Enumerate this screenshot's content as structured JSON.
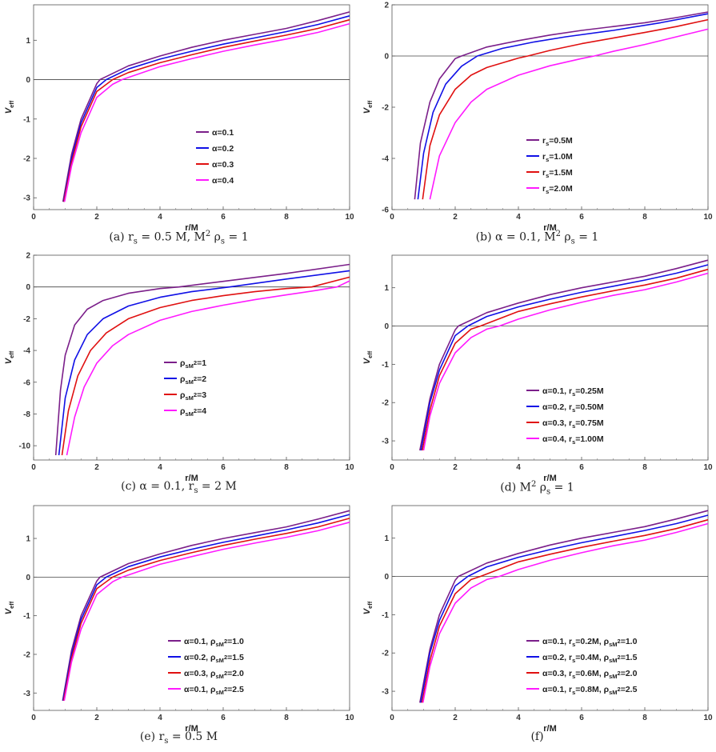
{
  "colors": {
    "purple": "#7b1f8a",
    "blue": "#1010e6",
    "red": "#e01010",
    "magenta": "#ff1aff"
  },
  "chart_data": [
    {
      "type": "line",
      "caption": "(a) r_s = 0.5 M, M^2 ρ_s = 1",
      "xlabel": "r/M",
      "ylabel": "V_eff",
      "xlim": [
        0,
        10
      ],
      "ylim": [
        -3.3,
        1.9
      ],
      "xticks": [
        "0",
        "2",
        "4",
        "6",
        "8",
        "10"
      ],
      "yticks": [
        "-3",
        "-2",
        "-1",
        "0",
        "1"
      ],
      "xtick_values": [
        0,
        2,
        4,
        6,
        8,
        10
      ],
      "ytick_values": [
        -3,
        -2,
        -1,
        0,
        1
      ],
      "legend_position": "center-right",
      "series": [
        {
          "name": "α=0.1",
          "color": "#7b1f8a",
          "x": [
            0.93,
            1.2,
            1.5,
            2.0,
            2.1,
            3,
            4,
            5,
            6,
            7,
            8,
            9,
            10
          ],
          "y": [
            -3.1,
            -1.9,
            -1.0,
            -0.1,
            0.0,
            0.35,
            0.6,
            0.82,
            1.0,
            1.15,
            1.3,
            1.5,
            1.72
          ]
        },
        {
          "name": "α=0.2",
          "color": "#1010e6",
          "x": [
            0.95,
            1.2,
            1.5,
            2.0,
            2.3,
            3,
            4,
            5,
            6,
            7,
            8,
            9,
            10
          ],
          "y": [
            -3.1,
            -2.0,
            -1.1,
            -0.2,
            0.0,
            0.27,
            0.52,
            0.72,
            0.9,
            1.06,
            1.22,
            1.4,
            1.62
          ]
        },
        {
          "name": "α=0.3",
          "color": "#e01010",
          "x": [
            0.96,
            1.2,
            1.5,
            2.0,
            2.5,
            3,
            4,
            5,
            6,
            7,
            8,
            9,
            10
          ],
          "y": [
            -3.1,
            -2.1,
            -1.2,
            -0.3,
            0.0,
            0.18,
            0.43,
            0.63,
            0.82,
            0.98,
            1.13,
            1.3,
            1.52
          ]
        },
        {
          "name": "α=0.4",
          "color": "#ff1aff",
          "x": [
            0.98,
            1.2,
            1.5,
            2.0,
            2.5,
            2.8,
            4,
            5,
            6,
            7,
            8,
            9,
            10
          ],
          "y": [
            -3.1,
            -2.2,
            -1.35,
            -0.45,
            -0.12,
            0.0,
            0.33,
            0.53,
            0.72,
            0.88,
            1.03,
            1.2,
            1.42
          ]
        }
      ]
    },
    {
      "type": "line",
      "caption": "(b) α = 0.1, M^2 ρ_s = 1",
      "xlabel": "r/M",
      "ylabel": "V_eff",
      "xlim": [
        0,
        10
      ],
      "ylim": [
        -6.0,
        2.0
      ],
      "xticks": [
        "0",
        "2",
        "4",
        "6",
        "8",
        "10"
      ],
      "yticks": [
        "-6",
        "-4",
        "-2",
        "0",
        "2"
      ],
      "xtick_values": [
        0,
        2,
        4,
        6,
        8,
        10
      ],
      "ytick_values": [
        -6,
        -4,
        -2,
        0,
        2
      ],
      "legend_position": "bottom-right",
      "series": [
        {
          "name": "r_s=0.5M",
          "color": "#7b1f8a",
          "x": [
            0.72,
            0.9,
            1.2,
            1.5,
            2.0,
            2.2,
            3,
            4,
            5,
            6,
            7,
            8,
            9,
            10
          ],
          "y": [
            -5.6,
            -3.4,
            -1.8,
            -0.9,
            -0.1,
            0.0,
            0.35,
            0.6,
            0.82,
            1.0,
            1.15,
            1.3,
            1.5,
            1.72
          ]
        },
        {
          "name": "r_s=1.0M",
          "color": "#1010e6",
          "x": [
            0.82,
            1.0,
            1.3,
            1.7,
            2.2,
            2.7,
            3.5,
            4.5,
            5.5,
            7,
            8.5,
            10
          ],
          "y": [
            -5.6,
            -3.8,
            -2.2,
            -1.1,
            -0.4,
            0.0,
            0.3,
            0.55,
            0.75,
            1.0,
            1.3,
            1.65
          ]
        },
        {
          "name": "r_s=1.5M",
          "color": "#e01010",
          "x": [
            0.97,
            1.2,
            1.5,
            2.0,
            2.5,
            3.0,
            4.0,
            4.3,
            5,
            6,
            7,
            8,
            9,
            10
          ],
          "y": [
            -5.6,
            -3.5,
            -2.3,
            -1.3,
            -0.75,
            -0.45,
            -0.08,
            0.0,
            0.22,
            0.48,
            0.7,
            0.92,
            1.15,
            1.42
          ]
        },
        {
          "name": "r_s=2.0M",
          "color": "#ff1aff",
          "x": [
            1.2,
            1.5,
            2.0,
            2.5,
            3.0,
            4.0,
            5.0,
            6.0,
            6.4,
            7,
            8,
            9,
            10
          ],
          "y": [
            -5.6,
            -3.9,
            -2.6,
            -1.8,
            -1.3,
            -0.75,
            -0.38,
            -0.1,
            0.0,
            0.18,
            0.45,
            0.75,
            1.05
          ]
        }
      ]
    },
    {
      "type": "line",
      "caption": "(c) α = 0.1, r_s = 2 M",
      "xlabel": "r/M",
      "ylabel": "V_eff",
      "xlim": [
        0,
        10
      ],
      "ylim": [
        -10.9,
        2.0
      ],
      "xticks": [
        "0",
        "2",
        "4",
        "6",
        "8",
        "10"
      ],
      "yticks": [
        "-10",
        "-8",
        "-6",
        "-4",
        "-2",
        "0",
        "2"
      ],
      "xtick_values": [
        0,
        2,
        4,
        6,
        8,
        10
      ],
      "ytick_values": [
        -10,
        -8,
        -6,
        -4,
        -2,
        0,
        2
      ],
      "legend_position": "center",
      "series": [
        {
          "name": "ρ_sM^2=1",
          "color": "#7b1f8a",
          "x": [
            0.7,
            0.85,
            1.0,
            1.3,
            1.7,
            2.2,
            3.0,
            4.0,
            4.6,
            6,
            8,
            10
          ],
          "y": [
            -10.6,
            -6.5,
            -4.3,
            -2.4,
            -1.4,
            -0.85,
            -0.4,
            -0.1,
            0.0,
            0.35,
            0.85,
            1.42
          ]
        },
        {
          "name": "ρ_sM^2=2",
          "color": "#1010e6",
          "x": [
            0.8,
            1.0,
            1.3,
            1.7,
            2.2,
            3.0,
            4.0,
            5.0,
            6.2,
            8,
            10
          ],
          "y": [
            -10.6,
            -7.0,
            -4.6,
            -3.0,
            -2.0,
            -1.2,
            -0.65,
            -0.3,
            0.0,
            0.5,
            1.02
          ]
        },
        {
          "name": "ρ_sM^2=3",
          "color": "#e01010",
          "x": [
            0.9,
            1.1,
            1.4,
            1.8,
            2.3,
            3.0,
            4.0,
            5.0,
            6.0,
            7.0,
            8.0,
            8.8,
            10
          ],
          "y": [
            -10.6,
            -7.8,
            -5.6,
            -4.0,
            -2.9,
            -2.0,
            -1.3,
            -0.85,
            -0.55,
            -0.3,
            -0.1,
            0.0,
            0.62
          ]
        },
        {
          "name": "ρ_sM^2=4",
          "color": "#ff1aff",
          "x": [
            1.05,
            1.3,
            1.6,
            2.0,
            2.5,
            3.0,
            4.0,
            5.0,
            6.0,
            7.0,
            8.0,
            9.0,
            9.6,
            10
          ],
          "y": [
            -10.6,
            -8.2,
            -6.3,
            -4.8,
            -3.7,
            -3.0,
            -2.1,
            -1.55,
            -1.15,
            -0.8,
            -0.5,
            -0.2,
            0.0,
            0.38
          ]
        }
      ]
    },
    {
      "type": "line",
      "caption": "(d) M^2 ρ_s = 1",
      "xlabel": "r/M",
      "ylabel": "V_eff",
      "xlim": [
        0,
        10
      ],
      "ylim": [
        -3.5,
        1.85
      ],
      "xticks": [
        "0",
        "2",
        "4",
        "6",
        "8",
        "10"
      ],
      "yticks": [
        "-3",
        "-2",
        "-1",
        "0",
        "1"
      ],
      "xtick_values": [
        0,
        2,
        4,
        6,
        8,
        10
      ],
      "ytick_values": [
        -3,
        -2,
        -1,
        0,
        1
      ],
      "legend_position": "bottom-right",
      "series": [
        {
          "name": "α=0.1, r_s=0.25M",
          "color": "#7b1f8a",
          "x": [
            0.88,
            1.2,
            1.5,
            2.0,
            2.1,
            3,
            4,
            5,
            6,
            7,
            8,
            9,
            10
          ],
          "y": [
            -3.25,
            -1.9,
            -1.0,
            -0.1,
            0.0,
            0.35,
            0.6,
            0.82,
            1.0,
            1.15,
            1.3,
            1.5,
            1.72
          ]
        },
        {
          "name": "α=0.2, r_s=0.50M",
          "color": "#1010e6",
          "x": [
            0.92,
            1.2,
            1.5,
            2.0,
            2.4,
            3,
            4,
            5,
            6,
            7,
            8,
            9,
            10
          ],
          "y": [
            -3.25,
            -2.0,
            -1.15,
            -0.25,
            0.0,
            0.25,
            0.5,
            0.7,
            0.88,
            1.04,
            1.2,
            1.38,
            1.6
          ]
        },
        {
          "name": "α=0.3, r_s=0.75M",
          "color": "#e01010",
          "x": [
            0.96,
            1.2,
            1.5,
            2.0,
            2.5,
            2.8,
            4,
            5,
            6,
            7,
            8,
            9,
            10
          ],
          "y": [
            -3.25,
            -2.2,
            -1.3,
            -0.45,
            -0.08,
            0.0,
            0.38,
            0.58,
            0.76,
            0.92,
            1.07,
            1.25,
            1.48
          ]
        },
        {
          "name": "α=0.4, r_s=1.00M",
          "color": "#ff1aff",
          "x": [
            1.0,
            1.2,
            1.5,
            2.0,
            2.5,
            3.0,
            3.4,
            4,
            5,
            6,
            7,
            8,
            9,
            10
          ],
          "y": [
            -3.25,
            -2.35,
            -1.5,
            -0.7,
            -0.3,
            -0.08,
            0.0,
            0.18,
            0.42,
            0.62,
            0.8,
            0.95,
            1.15,
            1.38
          ]
        }
      ]
    },
    {
      "type": "line",
      "caption": "(e) r_s = 0.5 M",
      "xlabel": "r/M",
      "ylabel": "V_eff",
      "xlim": [
        0,
        10
      ],
      "ylim": [
        -3.45,
        1.85
      ],
      "xticks": [
        "0",
        "2",
        "4",
        "6",
        "8",
        "10"
      ],
      "yticks": [
        "-3",
        "-2",
        "-1",
        "0",
        "1"
      ],
      "xtick_values": [
        0,
        2,
        4,
        6,
        8,
        10
      ],
      "ytick_values": [
        -3,
        -2,
        -1,
        0,
        1
      ],
      "legend_position": "bottom-right",
      "series": [
        {
          "name": "α=0.1, ρ_sM^2=1.0",
          "color": "#7b1f8a",
          "x": [
            0.92,
            1.2,
            1.5,
            2.0,
            2.1,
            3,
            4,
            5,
            6,
            7,
            8,
            9,
            10
          ],
          "y": [
            -3.2,
            -1.9,
            -1.0,
            -0.1,
            0.0,
            0.35,
            0.6,
            0.82,
            1.0,
            1.15,
            1.3,
            1.5,
            1.72
          ]
        },
        {
          "name": "α=0.2, ρ_sM^2=1.5",
          "color": "#1010e6",
          "x": [
            0.93,
            1.2,
            1.5,
            2.0,
            2.3,
            3,
            4,
            5,
            6,
            7,
            8,
            9,
            10
          ],
          "y": [
            -3.2,
            -2.0,
            -1.1,
            -0.2,
            0.0,
            0.27,
            0.52,
            0.72,
            0.9,
            1.06,
            1.22,
            1.4,
            1.62
          ]
        },
        {
          "name": "α=0.3, ρ_sM^2=2.0",
          "color": "#e01010",
          "x": [
            0.95,
            1.2,
            1.5,
            2.0,
            2.5,
            3,
            4,
            5,
            6,
            7,
            8,
            9,
            10
          ],
          "y": [
            -3.2,
            -2.1,
            -1.2,
            -0.3,
            0.0,
            0.18,
            0.43,
            0.63,
            0.82,
            0.98,
            1.13,
            1.3,
            1.52
          ]
        },
        {
          "name": "α=0.1, ρ_sM^2=2.5",
          "color": "#ff1aff",
          "x": [
            0.97,
            1.2,
            1.5,
            2.0,
            2.5,
            2.8,
            4,
            5,
            6,
            7,
            8,
            9,
            10
          ],
          "y": [
            -3.2,
            -2.2,
            -1.35,
            -0.45,
            -0.12,
            0.0,
            0.33,
            0.53,
            0.72,
            0.88,
            1.03,
            1.2,
            1.42
          ]
        }
      ]
    },
    {
      "type": "line",
      "caption": "(f)",
      "xlabel": "r/M",
      "ylabel": "V_eff",
      "xlim": [
        0,
        10
      ],
      "ylim": [
        -3.5,
        1.85
      ],
      "xticks": [
        "0",
        "2",
        "4",
        "6",
        "8",
        "10"
      ],
      "yticks": [
        "-3",
        "-2",
        "-1",
        "0",
        "1"
      ],
      "xtick_values": [
        0,
        2,
        4,
        6,
        8,
        10
      ],
      "ytick_values": [
        -3,
        -2,
        -1,
        0,
        1
      ],
      "legend_position": "bottom-right",
      "series": [
        {
          "name": "α=0.1, r_s=0.2M, ρ_sM^2=1.0",
          "color": "#7b1f8a",
          "x": [
            0.88,
            1.2,
            1.5,
            2.0,
            2.1,
            3,
            4,
            5,
            6,
            7,
            8,
            9,
            10
          ],
          "y": [
            -3.3,
            -1.9,
            -1.0,
            -0.1,
            0.0,
            0.35,
            0.6,
            0.82,
            1.0,
            1.15,
            1.3,
            1.5,
            1.72
          ]
        },
        {
          "name": "α=0.2, r_s=0.4M, ρ_sM^2=1.5",
          "color": "#1010e6",
          "x": [
            0.91,
            1.2,
            1.5,
            2.0,
            2.4,
            3,
            4,
            5,
            6,
            7,
            8,
            9,
            10
          ],
          "y": [
            -3.3,
            -2.0,
            -1.15,
            -0.25,
            0.0,
            0.25,
            0.5,
            0.7,
            0.88,
            1.04,
            1.2,
            1.38,
            1.6
          ]
        },
        {
          "name": "α=0.3, r_s=0.6M, ρ_sM^2=2.0",
          "color": "#e01010",
          "x": [
            0.95,
            1.2,
            1.5,
            2.0,
            2.5,
            2.8,
            4,
            5,
            6,
            7,
            8,
            9,
            10
          ],
          "y": [
            -3.3,
            -2.2,
            -1.3,
            -0.45,
            -0.08,
            0.0,
            0.38,
            0.58,
            0.76,
            0.92,
            1.07,
            1.25,
            1.48
          ]
        },
        {
          "name": "α=0.1, r_s=0.8M, ρ_sM^2=2.5",
          "color": "#ff1aff",
          "x": [
            0.98,
            1.2,
            1.5,
            2.0,
            2.5,
            3.0,
            3.4,
            4,
            5,
            6,
            7,
            8,
            9,
            10
          ],
          "y": [
            -3.3,
            -2.35,
            -1.5,
            -0.7,
            -0.3,
            -0.08,
            0.0,
            0.18,
            0.42,
            0.62,
            0.8,
            0.95,
            1.15,
            1.38
          ]
        }
      ]
    }
  ]
}
